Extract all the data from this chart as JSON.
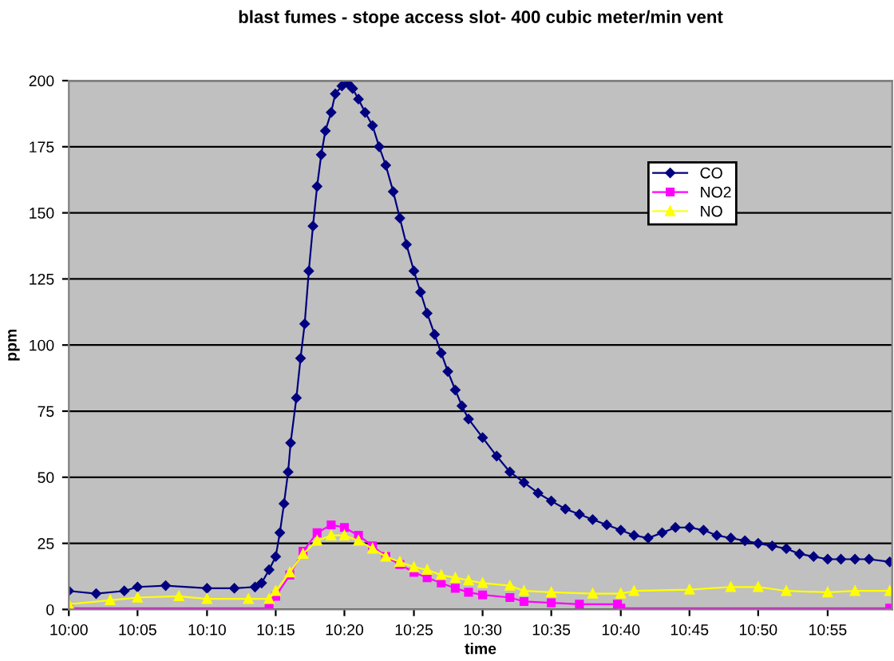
{
  "chart_data": {
    "type": "line",
    "title": "blast fumes - stope access slot- 400 cubic meter/min vent",
    "xlabel": "time",
    "ylabel": "ppm",
    "xlim": [
      10,
      10.995
    ],
    "ylim": [
      0,
      200
    ],
    "xticks": [
      {
        "value": 10,
        "label": "10:00"
      },
      {
        "value": 10.083,
        "label": "10:05"
      },
      {
        "value": 10.167,
        "label": "10:10"
      },
      {
        "value": 10.25,
        "label": "10:15"
      },
      {
        "value": 10.333,
        "label": "10:20"
      },
      {
        "value": 10.417,
        "label": "10:25"
      },
      {
        "value": 10.5,
        "label": "10:30"
      },
      {
        "value": 10.583,
        "label": "10:35"
      },
      {
        "value": 10.667,
        "label": "10:40"
      },
      {
        "value": 10.75,
        "label": "10:45"
      },
      {
        "value": 10.833,
        "label": "10:50"
      },
      {
        "value": 10.917,
        "label": "10:55"
      }
    ],
    "yticks": [
      0,
      25,
      50,
      75,
      100,
      125,
      150,
      175,
      200
    ],
    "grid": "y",
    "legend": "top right",
    "series": [
      {
        "name": "CO",
        "color": "#000080",
        "marker": "diamond",
        "x": [
          10,
          10.033,
          10.067,
          10.083,
          10.117,
          10.167,
          10.2,
          10.225,
          10.233,
          10.242,
          10.25,
          10.255,
          10.26,
          10.265,
          10.268,
          10.275,
          10.28,
          10.285,
          10.29,
          10.295,
          10.3,
          10.305,
          10.31,
          10.317,
          10.322,
          10.33,
          10.337,
          10.343,
          10.35,
          10.358,
          10.367,
          10.375,
          10.383,
          10.392,
          10.4,
          10.408,
          10.417,
          10.425,
          10.433,
          10.442,
          10.45,
          10.458,
          10.467,
          10.475,
          10.483,
          10.5,
          10.517,
          10.533,
          10.55,
          10.567,
          10.583,
          10.6,
          10.617,
          10.633,
          10.65,
          10.667,
          10.683,
          10.7,
          10.717,
          10.733,
          10.75,
          10.767,
          10.783,
          10.8,
          10.817,
          10.833,
          10.85,
          10.867,
          10.883,
          10.9,
          10.917,
          10.933,
          10.95,
          10.967,
          10.992
        ],
        "values": [
          7,
          6,
          7,
          8.5,
          9,
          8,
          8,
          8.5,
          10,
          15,
          20,
          29,
          40,
          52,
          63,
          80,
          95,
          108,
          128,
          145,
          160,
          172,
          181,
          188,
          195,
          198,
          199,
          197,
          193,
          188,
          183,
          175,
          168,
          158,
          148,
          138,
          128,
          120,
          112,
          104,
          97,
          90,
          83,
          77,
          72,
          65,
          58,
          52,
          48,
          44,
          41,
          38,
          36,
          34,
          32,
          30,
          28,
          27,
          29,
          31,
          31,
          30,
          28,
          27,
          26,
          25,
          24,
          23,
          21,
          20,
          19,
          19,
          19,
          19,
          18
        ]
      },
      {
        "name": "NO2",
        "color": "#ff00ff",
        "marker": "square",
        "x": [
          10,
          10.242,
          10.25,
          10.267,
          10.283,
          10.3,
          10.317,
          10.333,
          10.35,
          10.367,
          10.383,
          10.4,
          10.417,
          10.433,
          10.45,
          10.467,
          10.483,
          10.5,
          10.533,
          10.55,
          10.583,
          10.617,
          10.663,
          10.667,
          10.992
        ],
        "values": [
          0.5,
          0.5,
          5,
          13,
          22,
          29,
          32,
          31,
          28,
          24,
          20,
          17,
          14,
          12,
          10,
          8,
          6.5,
          5.5,
          4.5,
          3,
          2.5,
          2,
          2,
          0.5,
          0.5
        ]
      },
      {
        "name": "NO",
        "color": "#ffff00",
        "marker": "triangle",
        "x": [
          10,
          10.05,
          10.083,
          10.133,
          10.167,
          10.217,
          10.242,
          10.25,
          10.267,
          10.283,
          10.3,
          10.317,
          10.333,
          10.35,
          10.367,
          10.383,
          10.4,
          10.417,
          10.433,
          10.45,
          10.467,
          10.483,
          10.5,
          10.533,
          10.55,
          10.583,
          10.633,
          10.667,
          10.683,
          10.75,
          10.8,
          10.833,
          10.867,
          10.917,
          10.95,
          10.992
        ],
        "values": [
          2,
          3.5,
          4.5,
          5,
          4,
          4,
          4,
          7,
          14,
          21,
          26,
          28,
          28,
          26,
          23,
          20,
          18,
          16,
          15,
          13,
          12,
          11,
          10,
          9,
          7,
          6.5,
          6,
          6,
          7,
          7.5,
          8.5,
          8.5,
          7,
          6.5,
          7,
          7
        ]
      }
    ]
  }
}
